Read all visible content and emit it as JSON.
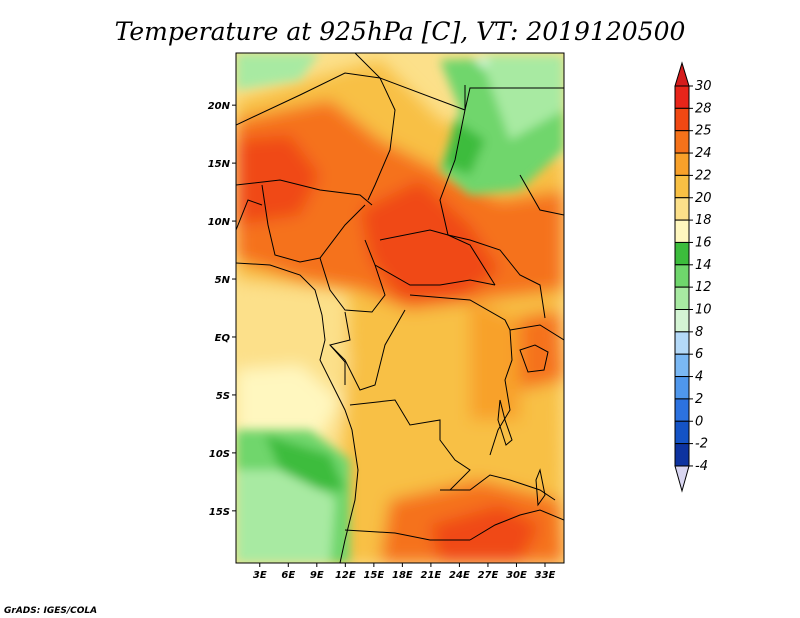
{
  "chart_data": {
    "type": "heatmap",
    "title": "Temperature at 925hPa [C], VT: 2019120500",
    "x_ticks": [
      "3E",
      "6E",
      "9E",
      "12E",
      "15E",
      "18E",
      "21E",
      "24E",
      "27E",
      "30E",
      "33E"
    ],
    "x_tick_values": [
      3,
      6,
      9,
      12,
      15,
      18,
      21,
      24,
      27,
      30,
      33
    ],
    "y_ticks": [
      "20N",
      "15N",
      "10N",
      "5N",
      "EQ",
      "5S",
      "10S",
      "15S"
    ],
    "y_tick_values": [
      20,
      15,
      10,
      5,
      0,
      -5,
      -10,
      -15
    ],
    "lon_range": [
      0.5,
      35
    ],
    "lat_range": [
      -19.5,
      24.5
    ],
    "colorbar": {
      "labels": [
        "30",
        "28",
        "25",
        "24",
        "22",
        "20",
        "18",
        "16",
        "14",
        "12",
        "10",
        "8",
        "6",
        "4",
        "2",
        "0",
        "-2",
        "-4"
      ],
      "colors": [
        "#e8251a",
        "#f04813",
        "#f5721a",
        "#f8a12a",
        "#f8c044",
        "#fce08a",
        "#fff7bf",
        "#3cbc3c",
        "#6fd66c",
        "#a8eaa2",
        "#d4f4d4",
        "#b4d9f8",
        "#7ab8f4",
        "#4f97ec",
        "#2c72e0",
        "#1453c6",
        "#0d33a0",
        "#0a1b6e"
      ],
      "top_arrow_color": "#d51c1c",
      "bottom_arrow_color": "#d9d6f1"
    },
    "credit": "GrADS: IGES/COLA"
  }
}
